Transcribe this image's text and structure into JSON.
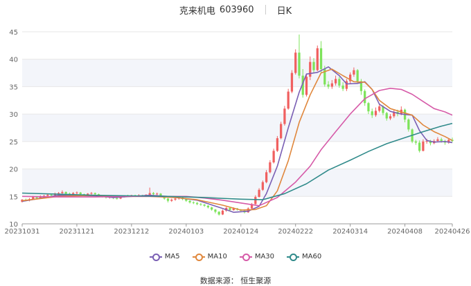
{
  "title": {
    "name": "克来机电",
    "code": "603960",
    "period": "日K"
  },
  "source": "数据来源： 恒生聚源",
  "chart_data": {
    "type": "candlestick",
    "x_ticks": [
      "20231031",
      "20231121",
      "20231212",
      "20240103",
      "20240124",
      "20240222",
      "20240314",
      "20240408",
      "20240426"
    ],
    "x_tick_index": [
      0,
      15,
      30,
      45,
      60,
      75,
      90,
      105,
      118
    ],
    "ylim": [
      10,
      45
    ],
    "y_ticks": [
      10,
      15,
      20,
      25,
      30,
      35,
      40,
      45
    ],
    "grid": "horizontal",
    "legend_position": "bottom",
    "colors": {
      "up": "#f06060",
      "down": "#7de35a"
    },
    "candles": [
      [
        14.0,
        14.4,
        13.9,
        14.5
      ],
      [
        14.4,
        14.3,
        14.1,
        14.6
      ],
      [
        14.3,
        14.5,
        14.1,
        14.7
      ],
      [
        14.5,
        14.9,
        14.4,
        15.1
      ],
      [
        14.9,
        14.7,
        14.5,
        15.0
      ],
      [
        14.7,
        15.0,
        14.6,
        15.2
      ],
      [
        15.0,
        15.1,
        14.8,
        15.3
      ],
      [
        15.1,
        15.3,
        15.0,
        15.5
      ],
      [
        15.3,
        15.2,
        15.0,
        15.4
      ],
      [
        15.2,
        15.5,
        15.1,
        15.7
      ],
      [
        15.5,
        15.6,
        15.3,
        15.8
      ],
      [
        15.6,
        15.8,
        15.4,
        16.1
      ],
      [
        15.8,
        15.5,
        15.3,
        15.9
      ],
      [
        15.5,
        15.3,
        15.2,
        15.7
      ],
      [
        15.3,
        15.6,
        15.2,
        15.8
      ],
      [
        15.6,
        15.7,
        15.4,
        15.9
      ],
      [
        15.7,
        15.4,
        15.2,
        15.8
      ],
      [
        15.4,
        15.3,
        15.1,
        15.5
      ],
      [
        15.3,
        15.5,
        15.2,
        15.6
      ],
      [
        15.5,
        15.6,
        15.3,
        15.8
      ],
      [
        15.6,
        15.4,
        15.2,
        15.7
      ],
      [
        15.4,
        15.1,
        15.0,
        15.5
      ],
      [
        15.1,
        15.0,
        14.8,
        15.2
      ],
      [
        15.0,
        14.8,
        14.6,
        15.1
      ],
      [
        14.8,
        14.9,
        14.6,
        15.0
      ],
      [
        14.9,
        14.7,
        14.5,
        15.0
      ],
      [
        14.7,
        14.6,
        14.4,
        14.9
      ],
      [
        14.6,
        14.9,
        14.5,
        15.0
      ],
      [
        14.9,
        15.1,
        14.8,
        15.2
      ],
      [
        15.1,
        15.0,
        14.9,
        15.3
      ],
      [
        15.0,
        15.2,
        14.9,
        15.3
      ],
      [
        15.2,
        15.1,
        14.9,
        15.3
      ],
      [
        15.1,
        15.2,
        15.0,
        15.4
      ],
      [
        15.2,
        15.0,
        14.9,
        15.3
      ],
      [
        15.0,
        15.3,
        14.9,
        15.4
      ],
      [
        15.3,
        15.6,
        15.2,
        16.6
      ],
      [
        15.6,
        15.4,
        15.2,
        15.8
      ],
      [
        15.4,
        15.5,
        15.2,
        15.7
      ],
      [
        15.5,
        15.0,
        14.9,
        15.6
      ],
      [
        15.0,
        14.6,
        14.4,
        15.1
      ],
      [
        14.6,
        14.2,
        13.9,
        14.7
      ],
      [
        14.2,
        14.4,
        14.0,
        14.6
      ],
      [
        14.4,
        14.6,
        14.2,
        14.8
      ],
      [
        14.6,
        14.8,
        14.4,
        15.0
      ],
      [
        14.8,
        14.5,
        14.3,
        14.9
      ],
      [
        14.5,
        14.2,
        14.0,
        14.6
      ],
      [
        14.2,
        13.9,
        13.7,
        14.3
      ],
      [
        13.9,
        13.8,
        13.6,
        14.1
      ],
      [
        13.8,
        13.6,
        13.4,
        14.0
      ],
      [
        13.6,
        13.5,
        13.3,
        13.8
      ],
      [
        13.5,
        13.3,
        13.1,
        13.6
      ],
      [
        13.3,
        13.0,
        12.8,
        13.4
      ],
      [
        13.0,
        12.6,
        12.4,
        13.1
      ],
      [
        12.6,
        12.2,
        11.9,
        12.7
      ],
      [
        12.2,
        11.7,
        11.5,
        12.3
      ],
      [
        11.7,
        12.4,
        11.6,
        12.6
      ],
      [
        12.4,
        12.9,
        12.2,
        13.1
      ],
      [
        12.9,
        12.5,
        12.3,
        13.0
      ],
      [
        12.5,
        12.8,
        12.4,
        13.0
      ],
      [
        12.8,
        12.6,
        12.4,
        12.9
      ],
      [
        12.6,
        12.4,
        12.2,
        12.7
      ],
      [
        12.4,
        12.1,
        11.9,
        12.5
      ],
      [
        12.1,
        12.8,
        12.0,
        13.0
      ],
      [
        12.8,
        13.6,
        12.7,
        13.8
      ],
      [
        13.6,
        14.9,
        13.5,
        15.2
      ],
      [
        14.9,
        16.2,
        14.8,
        16.5
      ],
      [
        16.2,
        17.6,
        16.0,
        17.9
      ],
      [
        17.6,
        19.4,
        17.4,
        19.8
      ],
      [
        19.4,
        21.2,
        19.2,
        21.6
      ],
      [
        21.2,
        23.3,
        21.0,
        23.7
      ],
      [
        23.3,
        25.6,
        23.1,
        26.0
      ],
      [
        25.6,
        28.2,
        25.4,
        28.6
      ],
      [
        28.2,
        31.0,
        27.9,
        31.5
      ],
      [
        31.0,
        34.1,
        30.8,
        34.6
      ],
      [
        34.1,
        37.5,
        33.8,
        38.0
      ],
      [
        37.5,
        41.2,
        37.2,
        41.8
      ],
      [
        41.2,
        37.0,
        36.5,
        44.5
      ],
      [
        37.0,
        33.5,
        33.0,
        38.2
      ],
      [
        33.5,
        36.8,
        33.2,
        37.4
      ],
      [
        36.8,
        39.5,
        36.2,
        40.5
      ],
      [
        39.5,
        38.0,
        37.4,
        40.2
      ],
      [
        38.0,
        42.0,
        37.8,
        42.5
      ],
      [
        42.0,
        38.2,
        37.6,
        43.3
      ],
      [
        38.2,
        35.4,
        35.0,
        38.8
      ],
      [
        35.4,
        35.0,
        34.6,
        36.0
      ],
      [
        35.0,
        35.6,
        34.6,
        36.2
      ],
      [
        35.6,
        36.4,
        35.2,
        37.0
      ],
      [
        36.4,
        35.2,
        34.8,
        36.8
      ],
      [
        35.2,
        34.6,
        34.2,
        35.8
      ],
      [
        34.6,
        36.0,
        34.2,
        36.4
      ],
      [
        36.0,
        37.2,
        35.6,
        37.6
      ],
      [
        37.2,
        38.0,
        36.8,
        38.5
      ],
      [
        38.0,
        36.0,
        35.5,
        38.2
      ],
      [
        36.0,
        34.2,
        33.5,
        36.4
      ],
      [
        34.2,
        32.0,
        31.5,
        34.5
      ],
      [
        32.0,
        30.5,
        30.0,
        32.2
      ],
      [
        30.5,
        29.8,
        29.3,
        31.0
      ],
      [
        29.8,
        30.6,
        29.5,
        31.2
      ],
      [
        30.6,
        31.4,
        30.3,
        31.8
      ],
      [
        31.4,
        30.2,
        29.8,
        31.6
      ],
      [
        30.2,
        29.2,
        28.8,
        30.4
      ],
      [
        29.2,
        29.6,
        28.9,
        30.0
      ],
      [
        29.6,
        30.4,
        29.3,
        30.8
      ],
      [
        30.4,
        30.0,
        29.6,
        30.8
      ],
      [
        30.0,
        30.8,
        29.8,
        31.4
      ],
      [
        30.8,
        29.0,
        28.5,
        31.0
      ],
      [
        29.0,
        27.2,
        26.8,
        29.2
      ],
      [
        27.2,
        25.0,
        24.7,
        27.4
      ],
      [
        25.0,
        24.8,
        24.4,
        25.3
      ],
      [
        24.8,
        23.3,
        23.0,
        25.2
      ],
      [
        23.3,
        25.0,
        23.2,
        25.4
      ],
      [
        25.0,
        25.1,
        24.6,
        25.5
      ],
      [
        25.1,
        24.7,
        24.3,
        25.3
      ],
      [
        24.7,
        25.1,
        24.5,
        25.4
      ],
      [
        25.1,
        25.4,
        24.9,
        25.8
      ],
      [
        25.4,
        25.1,
        24.8,
        25.7
      ],
      [
        25.1,
        24.8,
        24.4,
        25.3
      ],
      [
        24.8,
        25.3,
        24.6,
        25.6
      ],
      [
        25.3,
        25.1,
        24.9,
        25.7
      ]
    ],
    "series": [
      {
        "name": "MA5",
        "color": "#7a5fb4",
        "points": [
          [
            0,
            14.1
          ],
          [
            10,
            15.2
          ],
          [
            20,
            15.1
          ],
          [
            25,
            14.8
          ],
          [
            35,
            15.2
          ],
          [
            40,
            15.0
          ],
          [
            48,
            14.3
          ],
          [
            55,
            12.8
          ],
          [
            58,
            12.1
          ],
          [
            62,
            12.3
          ],
          [
            65,
            13.2
          ],
          [
            67,
            15.5
          ],
          [
            70,
            20.5
          ],
          [
            73,
            27.5
          ],
          [
            76,
            34.0
          ],
          [
            78,
            37.3
          ],
          [
            81,
            37.6
          ],
          [
            84,
            38.6
          ],
          [
            87,
            37.0
          ],
          [
            89,
            35.5
          ],
          [
            92,
            35.6
          ],
          [
            94,
            35.9
          ],
          [
            96,
            34.5
          ],
          [
            98,
            31.8
          ],
          [
            101,
            30.5
          ],
          [
            104,
            30.0
          ],
          [
            107,
            29.8
          ],
          [
            109,
            27.0
          ],
          [
            111,
            25.2
          ],
          [
            113,
            24.9
          ],
          [
            116,
            25.0
          ],
          [
            118,
            24.8
          ]
        ]
      },
      {
        "name": "MA10",
        "color": "#e0873c",
        "points": [
          [
            0,
            14.2
          ],
          [
            10,
            15.0
          ],
          [
            20,
            15.2
          ],
          [
            25,
            15.0
          ],
          [
            35,
            15.0
          ],
          [
            42,
            14.8
          ],
          [
            48,
            14.4
          ],
          [
            55,
            13.4
          ],
          [
            60,
            12.5
          ],
          [
            64,
            12.6
          ],
          [
            67,
            13.3
          ],
          [
            70,
            16.0
          ],
          [
            73,
            21.5
          ],
          [
            76,
            28.5
          ],
          [
            79,
            33.5
          ],
          [
            82,
            37.5
          ],
          [
            85,
            38.2
          ],
          [
            88,
            37.0
          ],
          [
            91,
            35.9
          ],
          [
            94,
            35.8
          ],
          [
            96,
            34.5
          ],
          [
            98,
            32.5
          ],
          [
            101,
            31.0
          ],
          [
            104,
            30.4
          ],
          [
            107,
            29.8
          ],
          [
            110,
            28.0
          ],
          [
            113,
            26.8
          ],
          [
            116,
            25.9
          ],
          [
            118,
            25.2
          ]
        ]
      },
      {
        "name": "MA30",
        "color": "#d65aa8",
        "points": [
          [
            0,
            15.0
          ],
          [
            10,
            14.9
          ],
          [
            20,
            14.9
          ],
          [
            30,
            15.0
          ],
          [
            40,
            15.0
          ],
          [
            45,
            15.0
          ],
          [
            50,
            14.7
          ],
          [
            55,
            14.3
          ],
          [
            62,
            13.6
          ],
          [
            65,
            13.3
          ],
          [
            70,
            14.8
          ],
          [
            75,
            17.6
          ],
          [
            79,
            20.5
          ],
          [
            82,
            23.5
          ],
          [
            86,
            26.8
          ],
          [
            90,
            30.0
          ],
          [
            94,
            32.8
          ],
          [
            98,
            34.3
          ],
          [
            101,
            34.7
          ],
          [
            104,
            34.5
          ],
          [
            107,
            33.6
          ],
          [
            110,
            32.3
          ],
          [
            113,
            31.0
          ],
          [
            116,
            30.4
          ],
          [
            118,
            29.8
          ]
        ]
      },
      {
        "name": "MA60",
        "color": "#2f8a8a",
        "points": [
          [
            0,
            15.6
          ],
          [
            10,
            15.4
          ],
          [
            20,
            15.2
          ],
          [
            30,
            15.1
          ],
          [
            40,
            15.0
          ],
          [
            50,
            14.8
          ],
          [
            60,
            14.5
          ],
          [
            66,
            14.4
          ],
          [
            72,
            15.5
          ],
          [
            78,
            17.3
          ],
          [
            84,
            19.8
          ],
          [
            90,
            21.6
          ],
          [
            95,
            23.2
          ],
          [
            100,
            24.6
          ],
          [
            105,
            25.7
          ],
          [
            110,
            26.8
          ],
          [
            115,
            27.8
          ],
          [
            118,
            28.3
          ]
        ]
      }
    ]
  }
}
